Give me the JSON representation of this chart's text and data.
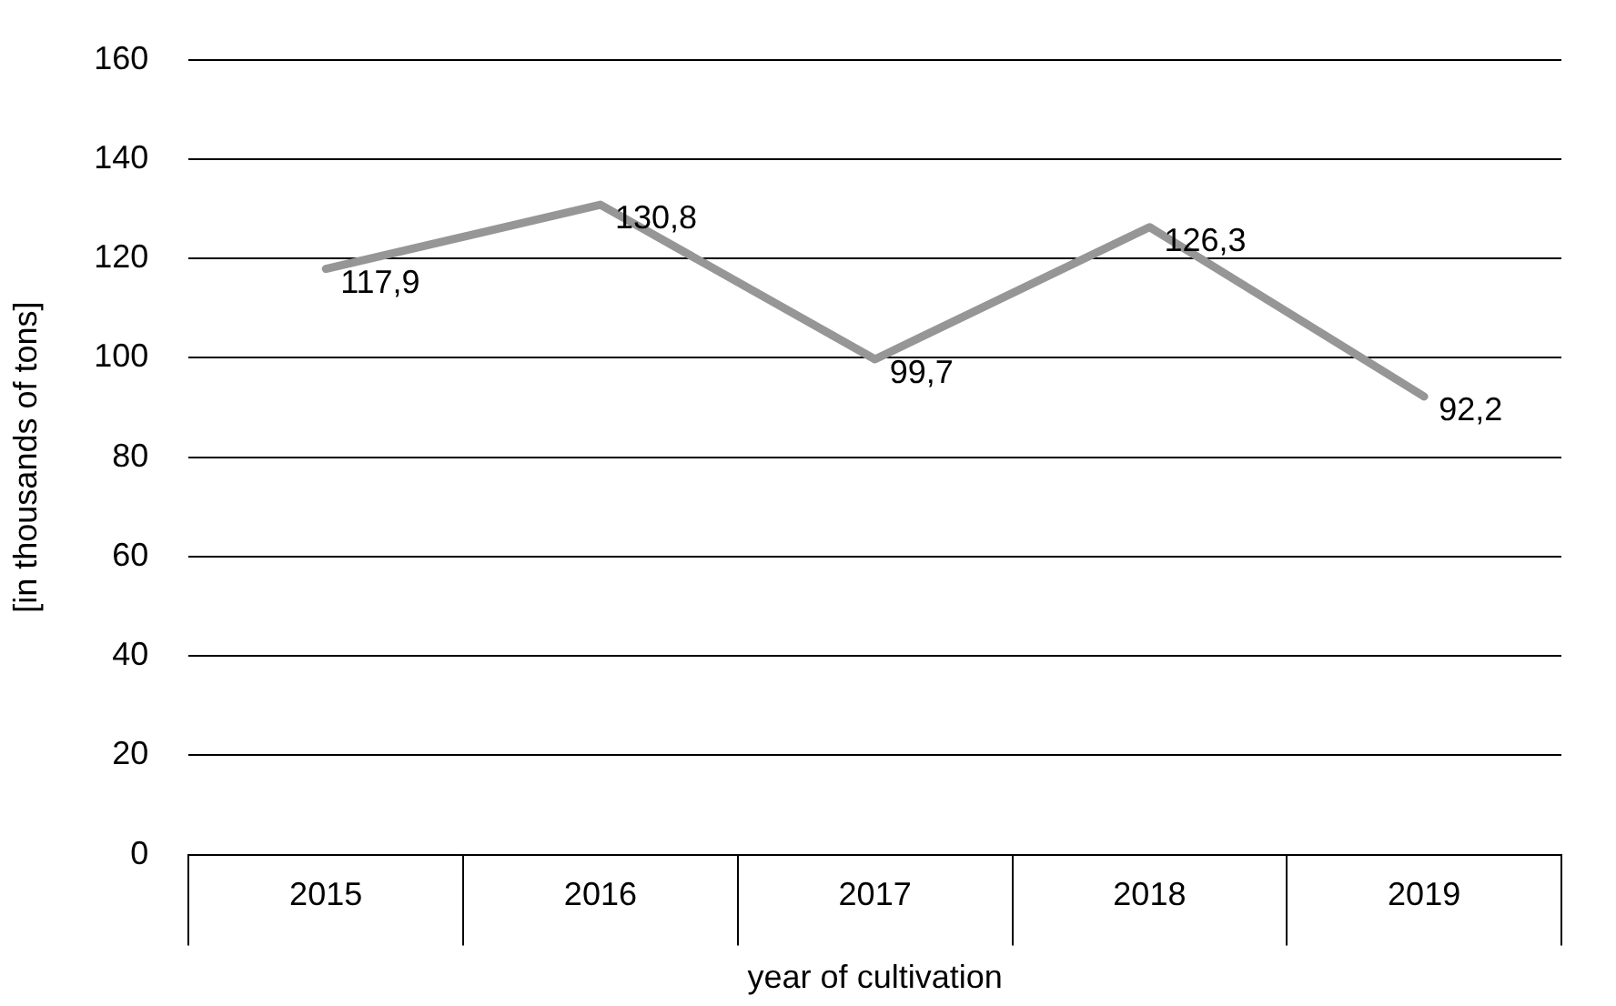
{
  "chart_data": {
    "type": "line",
    "xlabel": "year of cultivation",
    "ylabel": "[in thousands of tons]",
    "categories": [
      "2015",
      "2016",
      "2017",
      "2018",
      "2019"
    ],
    "series": [
      {
        "color": "#969696",
        "values": [
          117.9,
          130.8,
          99.7,
          126.3,
          92.2
        ],
        "value_labels": [
          "117,9",
          "130,8",
          "99,7",
          "126,3",
          "92,2"
        ]
      }
    ],
    "ylim": [
      0,
      160
    ],
    "yticks": [
      0,
      20,
      40,
      60,
      80,
      100,
      120,
      140,
      160
    ],
    "grid": "y",
    "legend": false,
    "marker": "none",
    "line_style": "solid"
  }
}
